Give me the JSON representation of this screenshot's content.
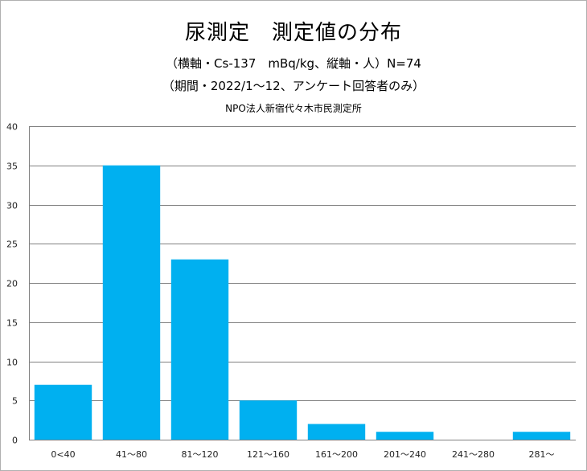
{
  "chart_data": {
    "type": "bar",
    "title": "尿測定　測定値の分布",
    "subtitle_lines": [
      "（横軸・Cs-137　mBq/kg、縦軸・人）N=74",
      "（期間・2022/1～12、アンケート回答者のみ）",
      "NPO法人新宿代々木市民測定所"
    ],
    "categories": [
      "0<40",
      "41～80",
      "81～120",
      "121～160",
      "161～200",
      "201～240",
      "241～280",
      "281～"
    ],
    "values": [
      7,
      35,
      23,
      5,
      2,
      1,
      0,
      1
    ],
    "ylim": [
      0,
      40
    ],
    "yticks": [
      0,
      5,
      10,
      15,
      20,
      25,
      30,
      35,
      40
    ],
    "grid": true,
    "bar_color": "#00b0f0",
    "grid_color": "#808080"
  }
}
